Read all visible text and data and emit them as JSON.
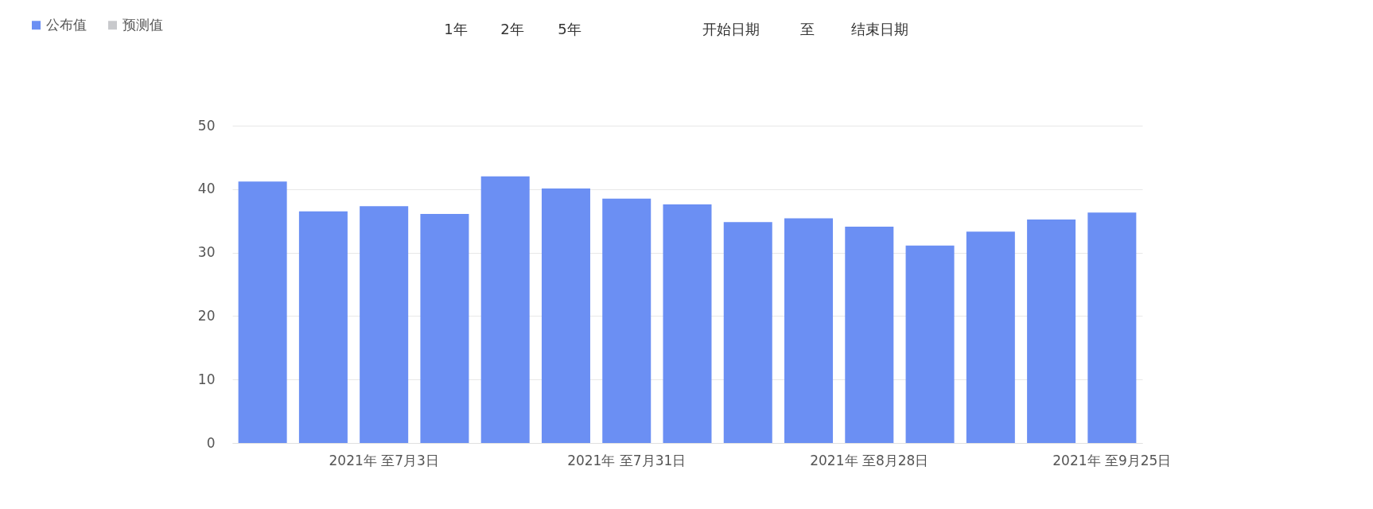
{
  "chart_data": {
    "type": "bar",
    "categories": [
      null,
      null,
      "2021年 至7月3日",
      null,
      null,
      null,
      "2021年 至7月31日",
      null,
      null,
      null,
      "2021年 至8月28日",
      null,
      null,
      null,
      "2021年 至9月25日"
    ],
    "series": [
      {
        "name": "公布值",
        "color": "#6b8ff3",
        "values": [
          41.2,
          36.5,
          37.3,
          36.1,
          42.0,
          40.1,
          38.5,
          37.6,
          34.8,
          35.4,
          34.1,
          31.1,
          33.3,
          35.2,
          36.3
        ]
      },
      {
        "name": "预测值",
        "color": "#c8c9cc",
        "values": [
          null,
          null,
          null,
          null,
          null,
          null,
          null,
          null,
          null,
          null,
          null,
          null,
          null,
          null,
          null
        ]
      }
    ],
    "ylim": [
      0,
      50
    ],
    "yticks": [
      0,
      10,
      20,
      30,
      40,
      50
    ],
    "grid": "y",
    "legend": "top left",
    "annotations": [
      "1年",
      "2年",
      "5年",
      "开始日期",
      "至",
      "结束日期"
    ]
  }
}
